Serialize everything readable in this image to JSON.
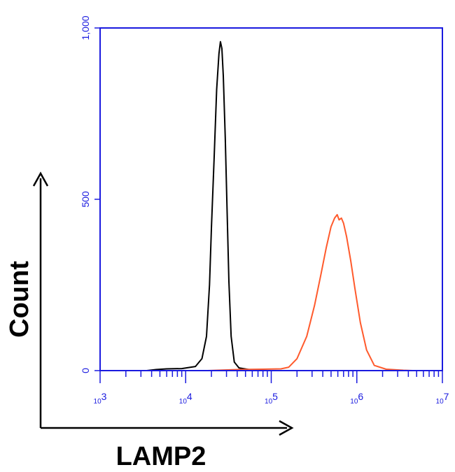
{
  "chart_data": {
    "type": "line",
    "xlabel": "LAMP2",
    "ylabel": "Count",
    "x_scale": "log",
    "xlim": [
      1000,
      10000000
    ],
    "ylim": [
      0,
      1000
    ],
    "x_ticks": [
      {
        "value": 1000,
        "base": "10",
        "exp": "3"
      },
      {
        "value": 10000,
        "base": "10",
        "exp": "4"
      },
      {
        "value": 100000,
        "base": "10",
        "exp": "5"
      },
      {
        "value": 1000000,
        "base": "10",
        "exp": "6"
      },
      {
        "value": 10000000,
        "base": "10",
        "exp": "7"
      }
    ],
    "y_ticks": [
      {
        "value": 0,
        "label": "0"
      },
      {
        "value": 500,
        "label": "500"
      },
      {
        "value": 1000,
        "label": "1,000"
      }
    ],
    "grid": false,
    "legend": "none",
    "series": [
      {
        "color": "#000000",
        "points": [
          [
            3500,
            0
          ],
          [
            4500,
            3
          ],
          [
            6000,
            5
          ],
          [
            9000,
            6
          ],
          [
            13000,
            12
          ],
          [
            15500,
            35
          ],
          [
            17500,
            100
          ],
          [
            19000,
            250
          ],
          [
            20000,
            420
          ],
          [
            21500,
            620
          ],
          [
            23000,
            820
          ],
          [
            24500,
            925
          ],
          [
            25500,
            960
          ],
          [
            26500,
            940
          ],
          [
            27500,
            860
          ],
          [
            29000,
            680
          ],
          [
            30500,
            460
          ],
          [
            32000,
            260
          ],
          [
            34000,
            100
          ],
          [
            37000,
            25
          ],
          [
            42000,
            8
          ],
          [
            55000,
            3
          ],
          [
            70000,
            0
          ]
        ]
      },
      {
        "color": "#ff5a2c",
        "points": [
          [
            18000,
            0
          ],
          [
            40000,
            3
          ],
          [
            80000,
            4
          ],
          [
            130000,
            5
          ],
          [
            160000,
            10
          ],
          [
            200000,
            35
          ],
          [
            260000,
            100
          ],
          [
            320000,
            190
          ],
          [
            380000,
            280
          ],
          [
            440000,
            360
          ],
          [
            500000,
            420
          ],
          [
            550000,
            445
          ],
          [
            590000,
            455
          ],
          [
            620000,
            440
          ],
          [
            660000,
            445
          ],
          [
            700000,
            430
          ],
          [
            760000,
            390
          ],
          [
            850000,
            320
          ],
          [
            950000,
            240
          ],
          [
            1100000,
            140
          ],
          [
            1300000,
            60
          ],
          [
            1600000,
            15
          ],
          [
            2200000,
            4
          ],
          [
            3500000,
            1
          ],
          [
            4500000,
            0
          ]
        ]
      }
    ],
    "colors": {
      "frame": "#1a1adf",
      "axis_arrow": "#000000"
    }
  }
}
